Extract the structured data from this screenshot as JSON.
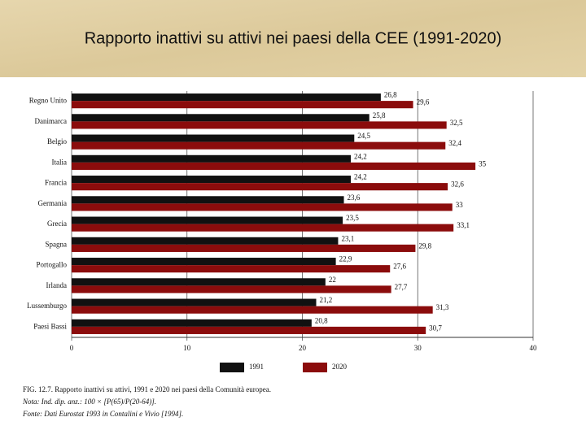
{
  "chart_data": {
    "type": "bar",
    "orientation": "horizontal",
    "title": "Rapporto inattivi su attivi nei paesi della CEE (1991-2020)",
    "categories": [
      "Regno Unito",
      "Danimarca",
      "Belgio",
      "Italia",
      "Francia",
      "Germania",
      "Grecia",
      "Spagna",
      "Portogallo",
      "Irlanda",
      "Lussemburgo",
      "Paesi Bassi"
    ],
    "series": [
      {
        "name": "1991",
        "color": "#111111",
        "values": [
          26.8,
          25.8,
          24.5,
          24.2,
          24.2,
          23.6,
          23.5,
          23.1,
          22.9,
          22,
          21.2,
          20.8
        ],
        "value_labels": [
          "26,8",
          "25,8",
          "24,5",
          "24,2",
          "24,2",
          "23,6",
          "23,5",
          "23,1",
          "22,9",
          "22",
          "21,2",
          "20,8"
        ]
      },
      {
        "name": "2020",
        "color": "#8b0c0c",
        "values": [
          29.6,
          32.5,
          32.4,
          35,
          32.6,
          33,
          33.1,
          29.8,
          27.6,
          27.7,
          31.3,
          30.7
        ],
        "value_labels": [
          "29,6",
          "32,5",
          "32,4",
          "35",
          "32,6",
          "33",
          "33,1",
          "29,8",
          "27,6",
          "27,7",
          "31,3",
          "30,7"
        ]
      }
    ],
    "xlim": [
      0,
      40
    ],
    "xticks": [
      0,
      10,
      20,
      30,
      40
    ],
    "grid": true,
    "notes": [
      "FIG. 12.7. Rapporto inattivi su attivi, 1991 e 2020 nei paesi della Comunità europea.",
      "Nota: Ind. dip. anz.: 100 × [P(65)/P(20-64)].",
      "Fonte: Dati Eurostat 1993 in Contalini e Vivio [1994]."
    ]
  }
}
